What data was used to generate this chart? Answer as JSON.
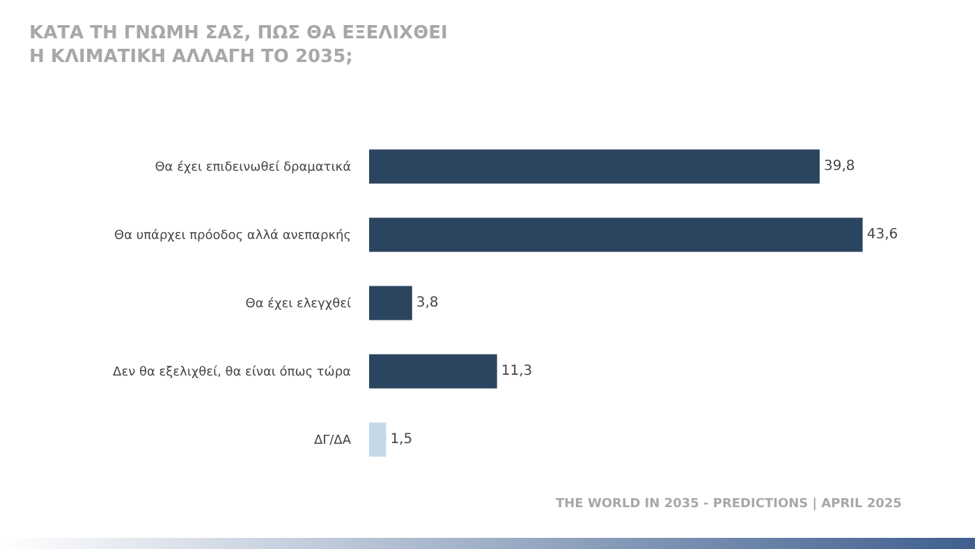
{
  "chart_data": {
    "type": "bar",
    "orientation": "horizontal",
    "title": "ΚΑΤΑ ΤΗ ΓΝΩΜΗ ΣΑΣ, ΠΩΣ ΘΑ ΕΞΕΛΙΧΘΕΙ\nΗ ΚΛΙΜΑΤΙΚΗ ΑΛΛΑΓΗ ΤΟ 2035;",
    "categories": [
      "Θα έχει επιδεινωθεί δραματικά",
      "Θα υπάρχει πρόοδος αλλά ανεπαρκής",
      "Θα έχει ελεγχθεί",
      "Δεν θα εξελιχθεί, θα είναι όπως τώρα",
      "ΔΓ/ΔΑ"
    ],
    "values": [
      39.8,
      43.6,
      3.8,
      11.3,
      1.5
    ],
    "value_labels": [
      "39,8",
      "43,6",
      "3,8",
      "11,3",
      "1,5"
    ],
    "colors": [
      "#2b4560",
      "#2b4560",
      "#2b4560",
      "#2b4560",
      "#c5d8e8"
    ],
    "tick_labels": "y",
    "annotations": [
      "THE WORLD IN 2035 - PREDICTIONS | APRIL 2025"
    ]
  }
}
